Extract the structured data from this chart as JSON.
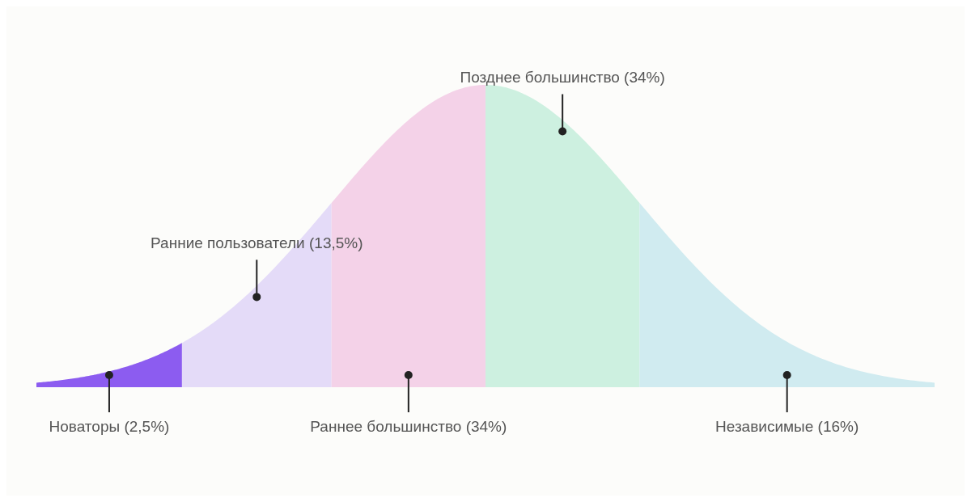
{
  "chart_data": {
    "type": "other",
    "categories": [
      "Новаторы",
      "Ранние пользователи",
      "Раннее большинство",
      "Позднее большинство",
      "Независимые"
    ],
    "values": [
      2.5,
      13.5,
      34,
      34,
      16
    ],
    "value_labels": [
      "(2,5%)",
      "(13,5%)",
      "(34%)",
      "(34%)",
      "(16%)"
    ],
    "colors": [
      "#8c5cf0",
      "#e4dbf8",
      "#f4d2e8",
      "#cdf0e0",
      "#d0ebf0"
    ]
  }
}
